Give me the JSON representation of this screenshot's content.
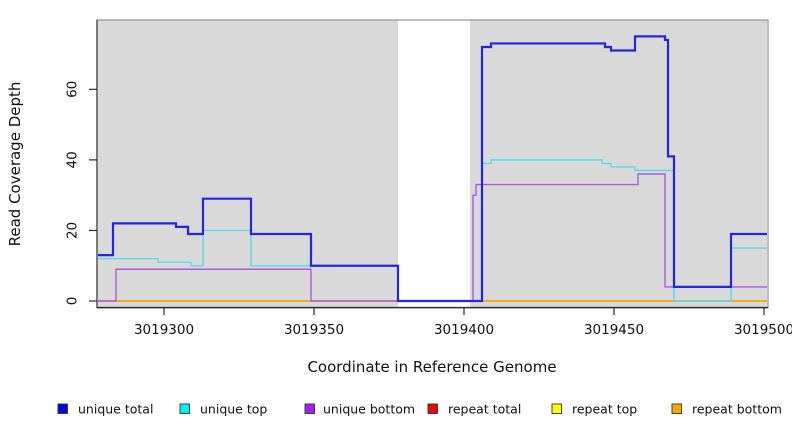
{
  "figure": {
    "xlabel": "Coordinate in Reference Genome",
    "ylabel": "Read Coverage Depth"
  },
  "chart_data": {
    "type": "line",
    "step": true,
    "title": "",
    "xlabel": "Coordinate in Reference Genome",
    "ylabel": "Read Coverage Depth",
    "xlim": [
      3019278,
      3019501
    ],
    "ylim": [
      -2,
      79.6
    ],
    "x_ticks": [
      3019300,
      3019350,
      3019400,
      3019450,
      3019500
    ],
    "y_ticks": [
      0,
      20,
      40,
      60
    ],
    "grid": false,
    "plot_background_color": "#d9d9d9",
    "gap_region_color": "#ffffff",
    "coverage_gap": [
      3019378,
      3019402
    ],
    "background_regions": [
      [
        3019278,
        3019378
      ],
      [
        3019402,
        3019501
      ]
    ],
    "series": [
      {
        "name": "repeat total",
        "slug": "repeat-total",
        "color": "#e60000",
        "width": 1.2,
        "points": [
          [
            3019278,
            0
          ]
        ]
      },
      {
        "name": "repeat top",
        "slug": "repeat-top",
        "color": "#ffff00",
        "width": 1.2,
        "points": [
          [
            3019278,
            0
          ]
        ]
      },
      {
        "name": "repeat bottom",
        "slug": "repeat-bottom",
        "color": "#ffa500",
        "width": 1.6,
        "points": [
          [
            3019278,
            0
          ]
        ]
      },
      {
        "name": "unique bottom",
        "slug": "unique-bottom",
        "color": "#ab5be0",
        "width": 1.4,
        "points": [
          [
            3019278,
            0
          ],
          [
            3019284,
            9
          ],
          [
            3019349,
            0
          ],
          [
            3019403,
            30
          ],
          [
            3019404,
            33
          ],
          [
            3019458,
            36
          ],
          [
            3019467,
            4
          ]
        ]
      },
      {
        "name": "unique top",
        "slug": "unique-top",
        "color": "#55dce8",
        "width": 1.4,
        "points": [
          [
            3019278,
            12
          ],
          [
            3019298,
            11
          ],
          [
            3019309,
            10
          ],
          [
            3019313,
            20
          ],
          [
            3019329,
            10
          ],
          [
            3019378,
            0
          ],
          [
            3019406,
            39
          ],
          [
            3019409,
            40
          ],
          [
            3019446,
            39
          ],
          [
            3019449,
            38
          ],
          [
            3019457,
            37
          ],
          [
            3019470,
            0
          ],
          [
            3019489,
            15
          ]
        ]
      },
      {
        "name": "unique total",
        "slug": "unique-total",
        "color": "#2525dd",
        "width": 2.2,
        "points": [
          [
            3019278,
            13
          ],
          [
            3019283,
            22
          ],
          [
            3019304,
            21
          ],
          [
            3019308,
            19
          ],
          [
            3019313,
            29
          ],
          [
            3019329,
            19
          ],
          [
            3019349,
            10
          ],
          [
            3019378,
            0
          ],
          [
            3019406,
            72
          ],
          [
            3019409,
            73
          ],
          [
            3019447,
            72
          ],
          [
            3019449,
            71
          ],
          [
            3019457,
            75
          ],
          [
            3019467,
            74
          ],
          [
            3019468,
            41
          ],
          [
            3019470,
            4
          ],
          [
            3019489,
            19
          ]
        ]
      }
    ],
    "legend": {
      "position": "bottom",
      "items": [
        {
          "label": "unique total",
          "slug": "unique-total",
          "color": "#0000ee"
        },
        {
          "label": "unique top",
          "slug": "unique-top",
          "color": "#00eeee"
        },
        {
          "label": "unique bottom",
          "slug": "unique-bottom",
          "color": "#a020f0"
        },
        {
          "label": "repeat total",
          "slug": "repeat-total",
          "color": "#ee0000"
        },
        {
          "label": "repeat top",
          "slug": "repeat-top",
          "color": "#ffff00"
        },
        {
          "label": "repeat bottom",
          "slug": "repeat-bottom",
          "color": "#ffa500"
        }
      ]
    }
  }
}
